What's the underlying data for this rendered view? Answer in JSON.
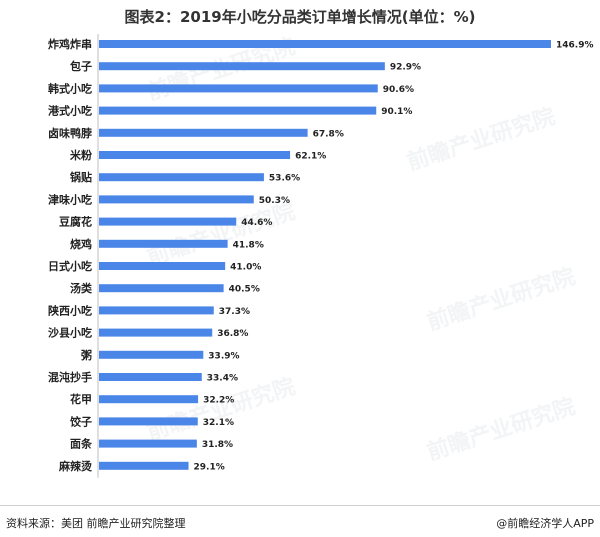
{
  "title": "图表2：2019年小吃分品类订单增长情况(单位：%)",
  "footer": {
    "source": "资料来源：美团 前瞻产业研究院整理",
    "credit": "@前瞻经济学人APP"
  },
  "watermark": "前瞻产业研究院",
  "colors": {
    "bar": "#4a86e8",
    "axis": "#bfbfbf"
  },
  "chart_data": {
    "type": "bar",
    "orientation": "horizontal",
    "categories": [
      "炸鸡炸串",
      "包子",
      "韩式小吃",
      "港式小吃",
      "卤味鸭脖",
      "米粉",
      "锅贴",
      "津味小吃",
      "豆腐花",
      "烧鸡",
      "日式小吃",
      "汤类",
      "陕西小吃",
      "沙县小吃",
      "粥",
      "混沌抄手",
      "花甲",
      "饺子",
      "面条",
      "麻辣烫"
    ],
    "values": [
      146.9,
      92.9,
      90.6,
      90.1,
      67.8,
      62.1,
      53.6,
      50.3,
      44.6,
      41.8,
      41.0,
      40.5,
      37.3,
      36.8,
      33.9,
      33.4,
      32.2,
      32.1,
      31.8,
      29.1
    ],
    "value_labels": [
      "146.9%",
      "92.9%",
      "90.6%",
      "90.1%",
      "67.8%",
      "62.1%",
      "53.6%",
      "50.3%",
      "44.6%",
      "41.8%",
      "41.0%",
      "40.5%",
      "37.3%",
      "36.8%",
      "33.9%",
      "33.4%",
      "32.2%",
      "32.1%",
      "31.8%",
      "29.1%"
    ],
    "xlim": [
      0,
      146.9
    ],
    "grid": false,
    "legend": "none"
  }
}
